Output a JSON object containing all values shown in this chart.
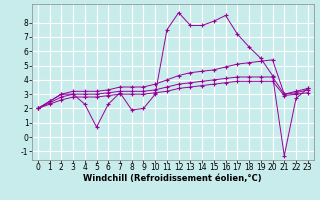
{
  "xlabel": "Windchill (Refroidissement éolien,°C)",
  "bg_color": "#c8eceb",
  "grid_color": "#ffffff",
  "line_color": "#990099",
  "xlim": [
    -0.5,
    23.5
  ],
  "ylim": [
    -1.6,
    9.3
  ],
  "yticks": [
    -1,
    0,
    1,
    2,
    3,
    4,
    5,
    6,
    7,
    8
  ],
  "xticks": [
    0,
    1,
    2,
    3,
    4,
    5,
    6,
    7,
    8,
    9,
    10,
    11,
    12,
    13,
    14,
    15,
    16,
    17,
    18,
    19,
    20,
    21,
    22,
    23
  ],
  "line1_y": [
    2.0,
    2.5,
    3.0,
    3.0,
    2.3,
    0.7,
    2.3,
    3.1,
    1.9,
    2.0,
    3.0,
    7.5,
    8.7,
    7.8,
    7.8,
    8.1,
    8.5,
    7.2,
    6.3,
    5.5,
    4.3,
    -1.3,
    2.7,
    3.4
  ],
  "line2_y": [
    2.0,
    2.5,
    3.0,
    3.2,
    3.2,
    3.2,
    3.3,
    3.5,
    3.5,
    3.5,
    3.7,
    4.0,
    4.3,
    4.5,
    4.6,
    4.7,
    4.9,
    5.1,
    5.2,
    5.3,
    5.4,
    3.0,
    3.2,
    3.4
  ],
  "line3_y": [
    2.0,
    2.4,
    2.8,
    3.0,
    3.0,
    3.0,
    3.1,
    3.2,
    3.2,
    3.2,
    3.3,
    3.5,
    3.7,
    3.8,
    3.9,
    4.0,
    4.1,
    4.2,
    4.2,
    4.2,
    4.2,
    3.0,
    3.1,
    3.3
  ],
  "line4_y": [
    2.0,
    2.3,
    2.6,
    2.8,
    2.8,
    2.8,
    2.9,
    3.0,
    3.0,
    3.0,
    3.1,
    3.2,
    3.4,
    3.5,
    3.6,
    3.7,
    3.8,
    3.9,
    3.9,
    3.9,
    3.9,
    2.9,
    3.0,
    3.1
  ],
  "xlabel_fontsize": 6.0,
  "tick_fontsize": 5.5,
  "linewidth": 0.7,
  "markersize": 3.0
}
